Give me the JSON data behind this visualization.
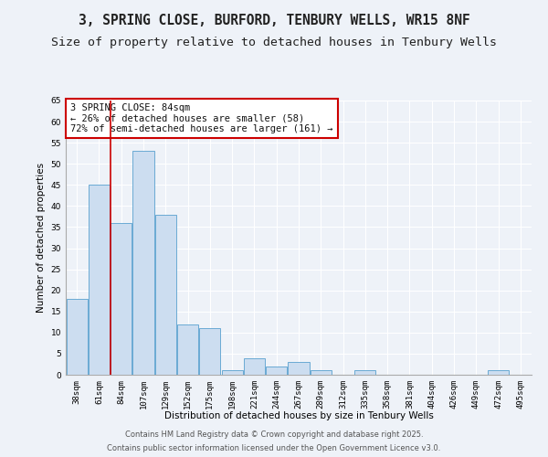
{
  "title": "3, SPRING CLOSE, BURFORD, TENBURY WELLS, WR15 8NF",
  "subtitle": "Size of property relative to detached houses in Tenbury Wells",
  "xlabel": "Distribution of detached houses by size in Tenbury Wells",
  "ylabel": "Number of detached properties",
  "categories": [
    "38sqm",
    "61sqm",
    "84sqm",
    "107sqm",
    "129sqm",
    "152sqm",
    "175sqm",
    "198sqm",
    "221sqm",
    "244sqm",
    "267sqm",
    "289sqm",
    "312sqm",
    "335sqm",
    "358sqm",
    "381sqm",
    "404sqm",
    "426sqm",
    "449sqm",
    "472sqm",
    "495sqm"
  ],
  "values": [
    18,
    45,
    36,
    53,
    38,
    12,
    11,
    1,
    4,
    2,
    3,
    1,
    0,
    1,
    0,
    0,
    0,
    0,
    0,
    1,
    0
  ],
  "bar_color": "#ccddf0",
  "bar_edge_color": "#6aaad4",
  "bar_linewidth": 0.7,
  "red_line_index": 2,
  "annotation_text": "3 SPRING CLOSE: 84sqm\n← 26% of detached houses are smaller (58)\n72% of semi-detached houses are larger (161) →",
  "annotation_box_color": "#ffffff",
  "annotation_box_edge_color": "#cc0000",
  "ylim": [
    0,
    65
  ],
  "yticks": [
    0,
    5,
    10,
    15,
    20,
    25,
    30,
    35,
    40,
    45,
    50,
    55,
    60,
    65
  ],
  "background_color": "#eef2f8",
  "grid_color": "#ffffff",
  "footer_line1": "Contains HM Land Registry data © Crown copyright and database right 2025.",
  "footer_line2": "Contains public sector information licensed under the Open Government Licence v3.0.",
  "title_fontsize": 10.5,
  "subtitle_fontsize": 9.5,
  "axis_label_fontsize": 7.5,
  "tick_fontsize": 6.5,
  "annotation_fontsize": 7.5,
  "footer_fontsize": 6
}
